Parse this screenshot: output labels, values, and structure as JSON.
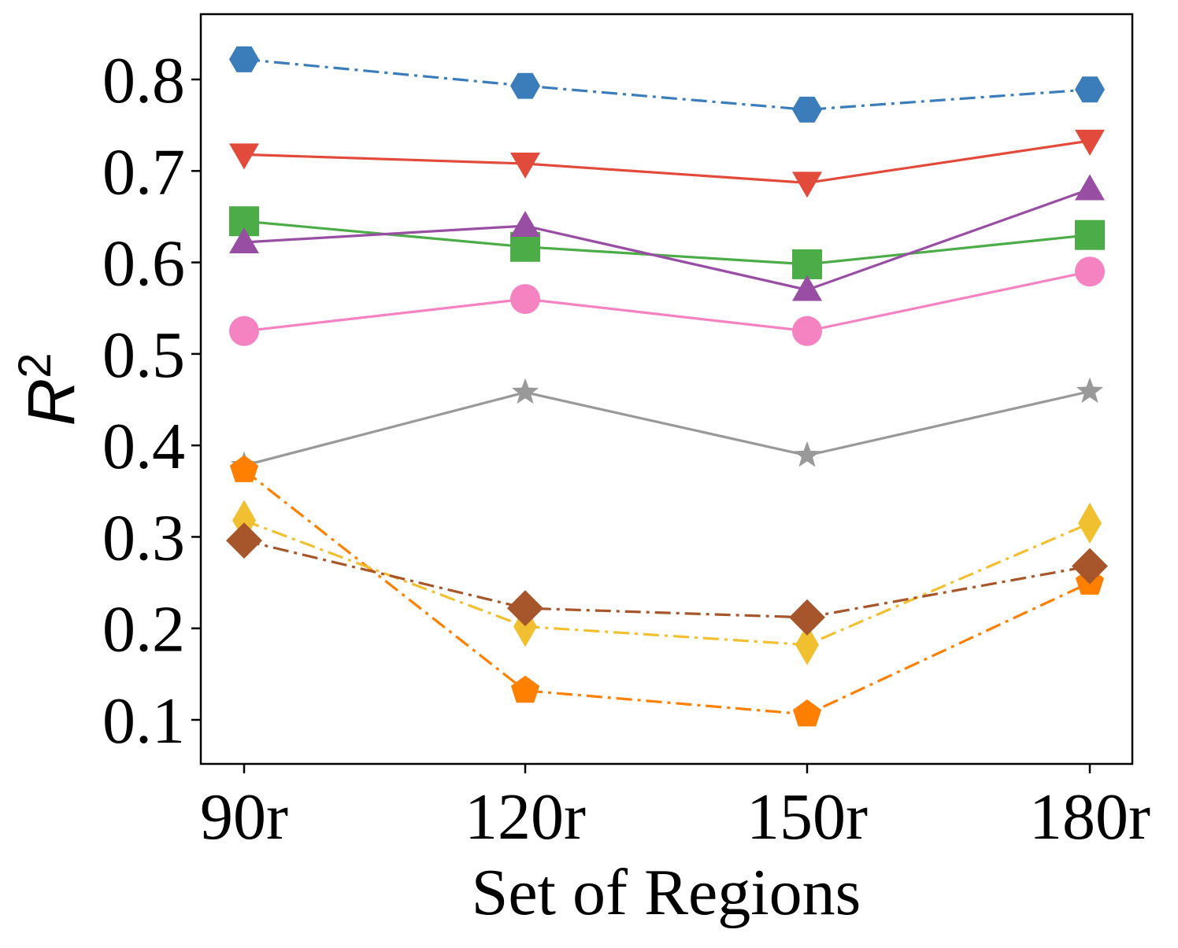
{
  "chart_data": {
    "type": "line",
    "title": "",
    "xlabel": "Set of Regions",
    "ylabel": "R",
    "ylabel_superscript": "2",
    "categories": [
      "90r",
      "120r",
      "150r",
      "180r"
    ],
    "yticks": [
      "0.1",
      "0.2",
      "0.3",
      "0.4",
      "0.5",
      "0.6",
      "0.7",
      "0.8"
    ],
    "ylim": [
      0.05,
      0.87
    ],
    "grid": false,
    "series": [
      {
        "name": "series-blue",
        "color": "#3b7dba",
        "marker": "hexagon",
        "linestyle": "dashdot",
        "values": [
          0.822,
          0.793,
          0.767,
          0.789
        ]
      },
      {
        "name": "series-red",
        "color": "#e24a3b",
        "marker": "triangle-down",
        "linestyle": "solid",
        "values": [
          0.718,
          0.708,
          0.687,
          0.733
        ]
      },
      {
        "name": "series-green",
        "color": "#4cac47",
        "marker": "square",
        "linestyle": "solid",
        "values": [
          0.645,
          0.617,
          0.598,
          0.63
        ]
      },
      {
        "name": "series-purple",
        "color": "#984ea3",
        "marker": "triangle-up",
        "linestyle": "solid",
        "values": [
          0.622,
          0.64,
          0.57,
          0.68
        ]
      },
      {
        "name": "series-pink",
        "color": "#f582c1",
        "marker": "circle",
        "linestyle": "solid",
        "values": [
          0.525,
          0.56,
          0.525,
          0.59
        ]
      },
      {
        "name": "series-gray",
        "color": "#999999",
        "marker": "star",
        "linestyle": "solid",
        "values": [
          0.378,
          0.458,
          0.389,
          0.459
        ]
      },
      {
        "name": "series-orange",
        "color": "#ff7f00",
        "marker": "pentagon",
        "linestyle": "dashdot",
        "values": [
          0.373,
          0.132,
          0.106,
          0.25
        ]
      },
      {
        "name": "series-yellow",
        "color": "#f0c030",
        "marker": "thin-diamond",
        "linestyle": "dashdot",
        "values": [
          0.318,
          0.202,
          0.182,
          0.315
        ]
      },
      {
        "name": "series-brown",
        "color": "#a6562a",
        "marker": "diamond",
        "linestyle": "dashdot",
        "values": [
          0.296,
          0.222,
          0.212,
          0.268
        ]
      }
    ]
  }
}
